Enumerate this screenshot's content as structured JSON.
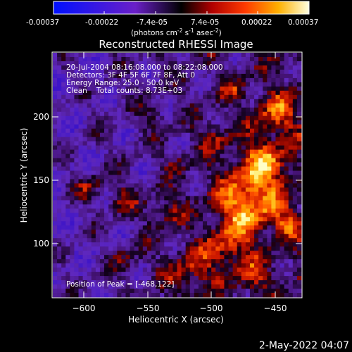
{
  "colorbar": {
    "ticks": [
      "-0.00037",
      "-0.00022",
      "-7.4e-05",
      "7.4e-05",
      "0.00022",
      "0.00037"
    ],
    "units_prefix": "(photons cm",
    "units_sup1": "-2",
    "units_mid1": " s",
    "units_sup2": "-1",
    "units_mid2": " asec",
    "units_sup3": "-2",
    "units_suffix": ")",
    "range": [
      -0.00037,
      0.00037
    ]
  },
  "chart_data": {
    "type": "heatmap",
    "title": "Reconstructed RHESSI Image",
    "xlabel": "Heliocentric X (arcsec)",
    "ylabel": "Heliocentric Y (arcsec)",
    "xlim": [
      -623,
      -427
    ],
    "ylim": [
      52,
      250
    ],
    "x_ticks": [
      -600,
      -550,
      -500,
      -450
    ],
    "x_tick_labels": [
      "−600",
      "−550",
      "−500",
      "−450"
    ],
    "y_ticks": [
      100,
      150,
      200
    ],
    "y_tick_labels": [
      "100",
      "150",
      "200"
    ],
    "annotations": [
      "20-Jul-2004 08:16:08.000 to 08:22:08.000",
      "Detectors: 3F 4F 5F 6F 7F 8F, Att 0",
      "Energy Range: 25.0 - 50.0 keV",
      "Clean    Total counts: 8.73E+03",
      "Position of Peak = [-468,122]"
    ],
    "peak": [
      -468,
      122
    ],
    "grid": false
  },
  "footer": {
    "timestamp": "2-May-2022 04:07"
  }
}
